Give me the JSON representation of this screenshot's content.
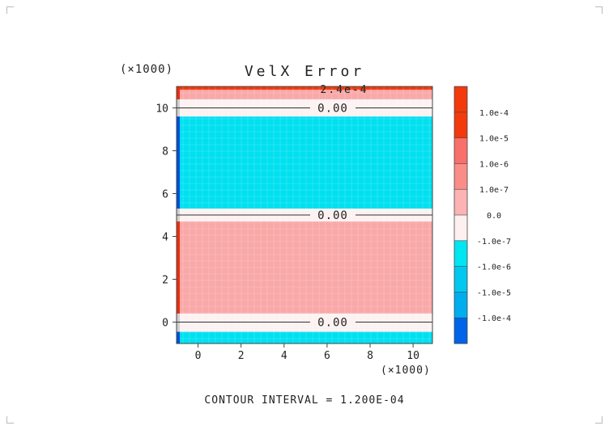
{
  "chart_data": {
    "type": "heatmap",
    "title": "VelX Error",
    "x_multiplier_label": "(×1000)",
    "y_multiplier_label": "(×1000)",
    "xlim": [
      -1,
      10.9
    ],
    "ylim": [
      -1,
      11
    ],
    "x_ticks": [
      0,
      2,
      4,
      6,
      8,
      10
    ],
    "y_ticks": [
      0,
      2,
      4,
      6,
      8,
      10
    ],
    "grid": false,
    "horizontal_bands": [
      {
        "y0": -1.0,
        "y1": -0.45,
        "level": "-1.0e-7"
      },
      {
        "y0": -0.45,
        "y1": 0.4,
        "level": "0.0"
      },
      {
        "y0": 0.4,
        "y1": 4.7,
        "level": "1.0e-7"
      },
      {
        "y0": 4.7,
        "y1": 5.3,
        "level": "0.0"
      },
      {
        "y0": 5.3,
        "y1": 9.6,
        "level": "-1.0e-7"
      },
      {
        "y0": 9.6,
        "y1": 10.4,
        "level": "0.0"
      },
      {
        "y0": 10.4,
        "y1": 10.85,
        "level": "1.0e-7"
      },
      {
        "y0": 10.85,
        "y1": 11.0,
        "level": "top"
      }
    ],
    "contour_lines": [
      {
        "y": 0.0,
        "label": "0.00"
      },
      {
        "y": 5.0,
        "label": "0.00"
      },
      {
        "y": 10.0,
        "label": "0.00"
      }
    ],
    "top_label": "2.4e-4",
    "colorbar": {
      "levels": [
        "1.0e-4",
        "1.0e-5",
        "1.0e-6",
        "1.0e-7",
        "0.0",
        "-1.0e-7",
        "-1.0e-6",
        "-1.0e-5",
        "-1.0e-4"
      ],
      "colors": [
        "#f23a0c",
        "#f96f6a",
        "#fb8d88",
        "#fbb3b3",
        "#fdf0f0",
        "#00e5f2",
        "#00c8f0",
        "#00aeef",
        "#0064e8"
      ],
      "top_color": "#f23a0c",
      "bottom_color": "#0064e8"
    },
    "footer": "CONTOUR INTERVAL = 1.200E-04"
  },
  "colors": {
    "pos_small": "#f9a8a8",
    "zero": "#fdf2f2",
    "neg_small": "#00e0f0",
    "top_red": "#f23a0c",
    "dark_blue": "#0050d8",
    "dark_red": "#e83010"
  }
}
